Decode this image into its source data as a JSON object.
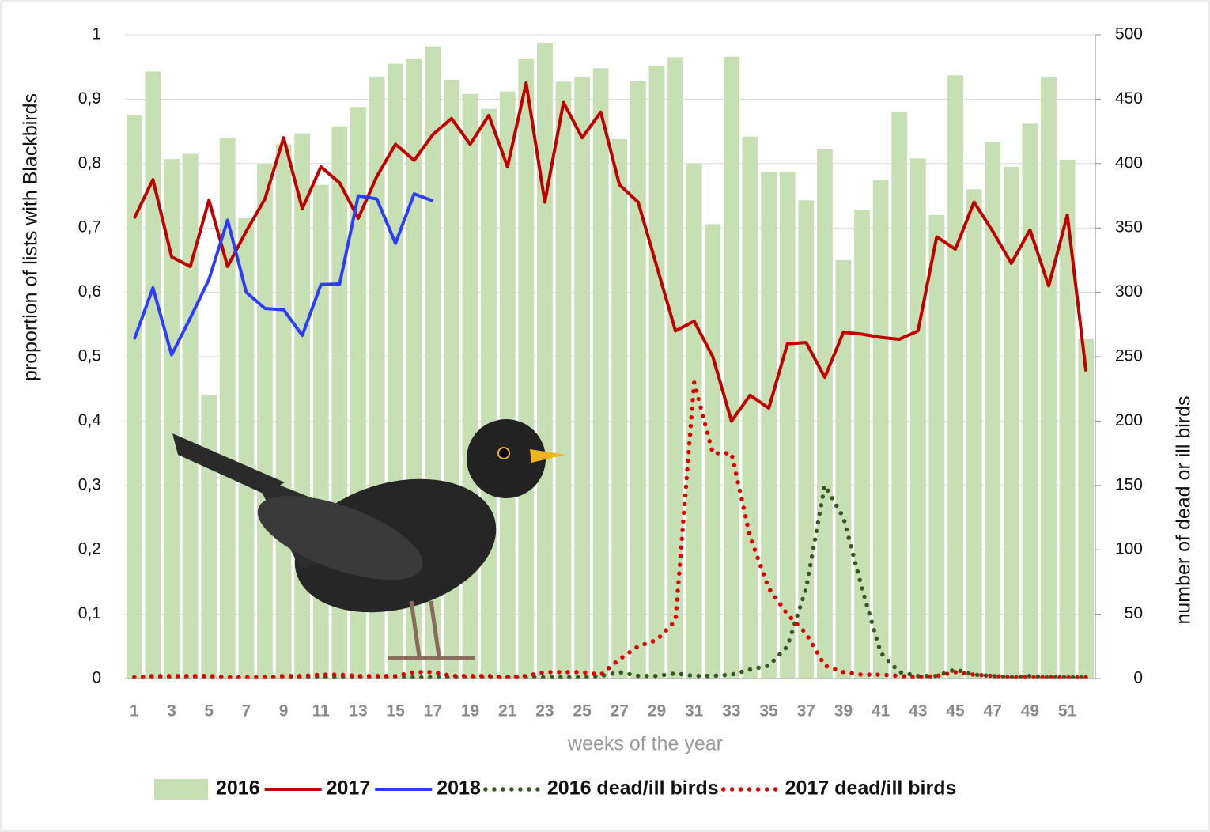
{
  "chart_data": {
    "type": "bar",
    "x_label": "weeks of the year",
    "y_label": "proportion of lists with Blackbirds",
    "y2_label": "number of dead or ill birds",
    "categories": [
      1,
      null,
      3,
      null,
      5,
      null,
      7,
      null,
      9,
      null,
      11,
      null,
      13,
      null,
      15,
      null,
      17,
      null,
      19,
      null,
      21,
      null,
      23,
      null,
      25,
      null,
      27,
      null,
      29,
      null,
      31,
      null,
      33,
      null,
      35,
      null,
      37,
      null,
      39,
      null,
      41,
      null,
      43,
      null,
      45,
      null,
      47,
      null,
      49,
      null,
      51,
      null
    ],
    "ylim": [
      0,
      1
    ],
    "yticks": [
      0,
      {
        "value": 0.1,
        "label": "0,1"
      },
      {
        "value": 0.2,
        "label": "0,2"
      },
      {
        "value": 0.3,
        "label": "0,3"
      },
      {
        "value": 0.4,
        "label": "0,4"
      },
      {
        "value": 0.5,
        "label": "0,5"
      },
      {
        "value": 0.6,
        "label": "0,6"
      },
      {
        "value": 0.7,
        "label": "0,7"
      },
      {
        "value": 0.8,
        "label": "0,8"
      },
      {
        "value": 0.9,
        "label": "0,9"
      },
      1
    ],
    "y2lim": [
      0,
      500
    ],
    "y2ticks": [
      0,
      50,
      100,
      150,
      200,
      250,
      300,
      350,
      400,
      450,
      500
    ],
    "grid": true,
    "legend": "bottom",
    "series": [
      {
        "name": "2016",
        "type": "bar",
        "color": "#c6e0b4",
        "values": [
          0.875,
          0.943,
          0.807,
          0.815,
          0.44,
          0.84,
          0.715,
          0.8,
          0.83,
          0.847,
          0.767,
          0.858,
          0.888,
          0.935,
          0.955,
          0.963,
          0.982,
          0.93,
          0.908,
          0.885,
          0.912,
          0.963,
          0.987,
          0.927,
          0.935,
          0.948,
          0.838,
          0.928,
          0.952,
          0.965,
          0.8,
          0.706,
          0.966,
          0.842,
          0.787,
          0.787,
          0.743,
          0.822,
          0.65,
          0.728,
          0.775,
          0.88,
          0.808,
          0.72,
          0.937,
          0.76,
          0.833,
          0.795,
          0.862,
          0.935,
          0.806,
          0.527
        ]
      },
      {
        "name": "2017",
        "type": "line",
        "color": "#c00000",
        "values": [
          0.715,
          0.775,
          0.655,
          0.64,
          0.743,
          0.64,
          0.695,
          0.745,
          0.84,
          0.73,
          0.795,
          0.77,
          0.715,
          0.78,
          0.83,
          0.805,
          0.845,
          0.87,
          0.83,
          0.875,
          0.795,
          0.925,
          0.74,
          0.895,
          0.84,
          0.88,
          0.767,
          0.74,
          0.64,
          0.54,
          0.555,
          0.5,
          0.4,
          0.44,
          0.42,
          0.52,
          0.522,
          0.468,
          0.538,
          0.535,
          0.53,
          0.527,
          0.54,
          0.686,
          0.667,
          0.74,
          0.695,
          0.645,
          0.697,
          0.61,
          0.72,
          0.477
        ]
      },
      {
        "name": "2018",
        "type": "line",
        "color": "#2e3cff",
        "values": [
          0.527,
          0.607,
          0.503,
          0.56,
          0.62,
          0.712,
          0.6,
          0.575,
          0.573,
          0.533,
          0.612,
          0.613,
          0.75,
          0.745,
          0.676,
          0.753,
          0.742,
          null,
          null,
          null,
          null,
          null,
          null,
          null,
          null,
          null,
          null,
          null,
          null,
          null,
          null,
          null,
          null,
          null,
          null,
          null,
          null,
          null,
          null,
          null,
          null,
          null,
          null,
          null,
          null,
          null,
          null,
          null,
          null,
          null,
          null,
          null
        ]
      },
      {
        "name": "2016 dead/ill birds",
        "type": "dotted",
        "axis": "y2",
        "color": "#375623",
        "values": [
          1,
          1,
          1,
          1,
          1,
          1,
          1,
          1,
          1,
          1,
          1,
          1,
          1,
          1,
          1,
          1,
          1,
          1,
          1,
          1,
          1,
          1,
          1,
          1,
          1,
          2,
          5,
          2,
          2,
          4,
          2,
          2,
          3,
          7,
          10,
          25,
          70,
          150,
          125,
          70,
          20,
          5,
          2,
          2,
          7,
          3,
          2,
          1,
          2,
          1,
          1,
          1
        ]
      },
      {
        "name": "2017 dead/ill birds",
        "type": "dotted",
        "axis": "y2",
        "color": "#e00000",
        "values": [
          1,
          2,
          2,
          2,
          2,
          1,
          1,
          1,
          2,
          2,
          3,
          3,
          2,
          2,
          2,
          5,
          5,
          2,
          2,
          2,
          1,
          2,
          5,
          5,
          5,
          3,
          15,
          25,
          30,
          45,
          230,
          175,
          175,
          110,
          70,
          50,
          35,
          10,
          5,
          3,
          3,
          2,
          1,
          2,
          5,
          3,
          2,
          1,
          1,
          1,
          1,
          1
        ]
      }
    ]
  }
}
